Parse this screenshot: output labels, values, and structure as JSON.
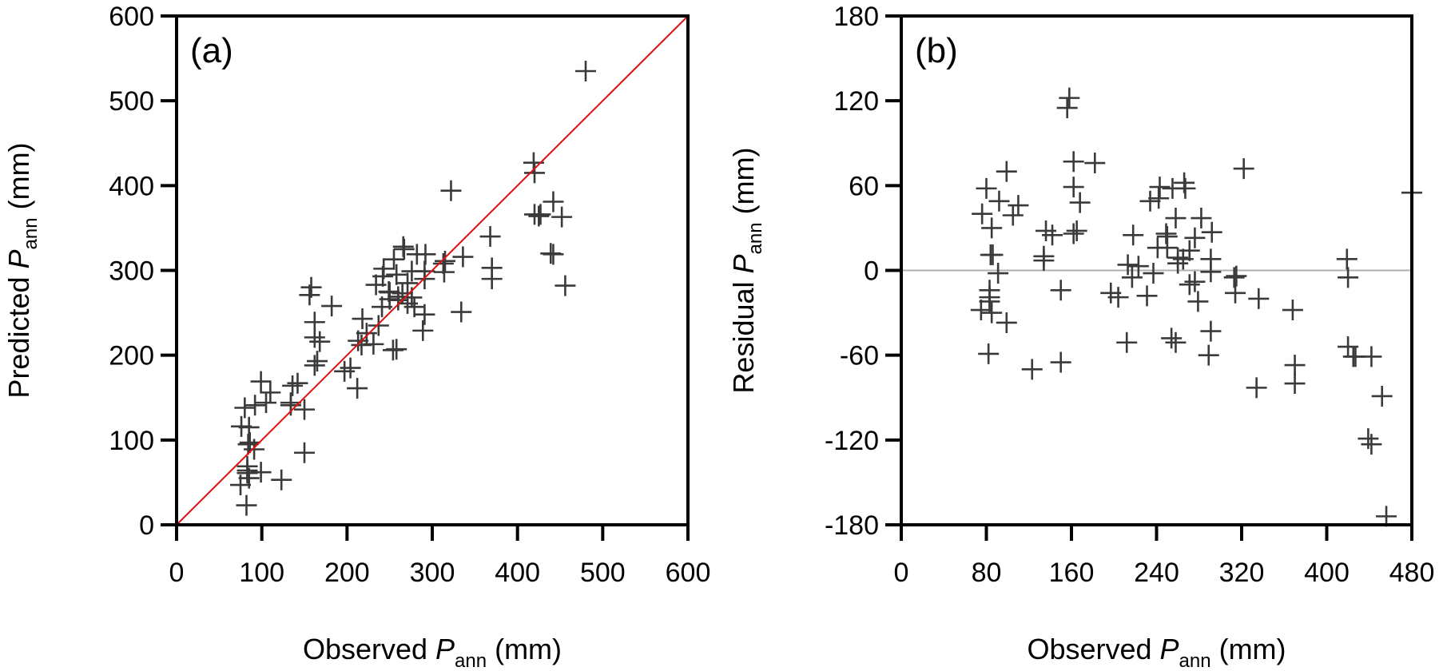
{
  "chart_data": [
    {
      "id": "a",
      "type": "scatter",
      "panel_label": "(a)",
      "title": "",
      "xlabel": {
        "pre": "Observed ",
        "italic": "P",
        "sub": "ann",
        "post": " (mm)"
      },
      "ylabel": {
        "pre": "Predicted ",
        "italic": "P",
        "sub": "ann",
        "post": " (mm)"
      },
      "xlim": [
        0,
        600
      ],
      "ylim": [
        0,
        600
      ],
      "xticks": [
        0,
        100,
        200,
        300,
        400,
        500,
        600
      ],
      "yticks": [
        0,
        100,
        200,
        300,
        400,
        500,
        600
      ],
      "xtick_labels": [
        "0",
        "100",
        "200",
        "300",
        "400",
        "500",
        "600"
      ],
      "ytick_labels": [
        "0",
        "100",
        "200",
        "300",
        "400",
        "500",
        "600"
      ],
      "grid": false,
      "marker": "+",
      "marker_color": "#3a3a3a",
      "reference_line": {
        "type": "1:1",
        "from": [
          0,
          0
        ],
        "to": [
          600,
          600
        ],
        "color": "#e01010"
      },
      "series_source": "points (x = observed, y = observed + residual)"
    },
    {
      "id": "b",
      "type": "scatter",
      "panel_label": "(b)",
      "title": "",
      "xlabel": {
        "pre": "Observed ",
        "italic": "P",
        "sub": "ann",
        "post": " (mm)"
      },
      "ylabel": {
        "pre": "Residual ",
        "italic": "P",
        "sub": "ann",
        "post": " (mm)"
      },
      "xlim": [
        0,
        480
      ],
      "ylim": [
        -180,
        180
      ],
      "xticks": [
        0,
        80,
        160,
        240,
        320,
        400,
        480
      ],
      "yticks": [
        -180,
        -120,
        -60,
        0,
        60,
        120,
        180
      ],
      "xtick_labels": [
        "0",
        "80",
        "160",
        "240",
        "320",
        "400",
        "480"
      ],
      "ytick_labels": [
        "-180",
        "-120",
        "-60",
        "0",
        "60",
        "120",
        "180"
      ],
      "grid": false,
      "marker": "+",
      "marker_color": "#3a3a3a",
      "reference_line": {
        "type": "horizontal",
        "y": 0,
        "color": "#b0b0b0"
      },
      "series_source": "points (x = observed, y = residual)"
    }
  ],
  "points": [
    {
      "obs": 99,
      "res": 70
    },
    {
      "obs": 80,
      "res": 58
    },
    {
      "obs": 92,
      "res": 49
    },
    {
      "obs": 110,
      "res": 46
    },
    {
      "obs": 76,
      "res": 40
    },
    {
      "obs": 105,
      "res": 39
    },
    {
      "obs": 85,
      "res": 30
    },
    {
      "obs": 84,
      "res": 11
    },
    {
      "obs": 86,
      "res": 11
    },
    {
      "obs": 91,
      "res": -2
    },
    {
      "obs": 83,
      "res": -14
    },
    {
      "obs": 83,
      "res": -19
    },
    {
      "obs": 83,
      "res": -22
    },
    {
      "obs": 75,
      "res": -28
    },
    {
      "obs": 85,
      "res": -30
    },
    {
      "obs": 99,
      "res": -37
    },
    {
      "obs": 82,
      "res": -59
    },
    {
      "obs": 123,
      "res": -70
    },
    {
      "obs": 158,
      "res": 122
    },
    {
      "obs": 156,
      "res": 115
    },
    {
      "obs": 162,
      "res": 77
    },
    {
      "obs": 182,
      "res": 76
    },
    {
      "obs": 162,
      "res": 59
    },
    {
      "obs": 168,
      "res": 48
    },
    {
      "obs": 136,
      "res": 28
    },
    {
      "obs": 142,
      "res": 25
    },
    {
      "obs": 162,
      "res": 26
    },
    {
      "obs": 165,
      "res": 28
    },
    {
      "obs": 134,
      "res": 10
    },
    {
      "obs": 134,
      "res": 7
    },
    {
      "obs": 150,
      "res": -14
    },
    {
      "obs": 150,
      "res": -65
    },
    {
      "obs": 218,
      "res": 25
    },
    {
      "obs": 213,
      "res": 4
    },
    {
      "obs": 223,
      "res": 3
    },
    {
      "obs": 217,
      "res": -5
    },
    {
      "obs": 237,
      "res": -2
    },
    {
      "obs": 197,
      "res": -16
    },
    {
      "obs": 204,
      "res": -19
    },
    {
      "obs": 231,
      "res": -18
    },
    {
      "obs": 212,
      "res": -51
    },
    {
      "obs": 243,
      "res": 59
    },
    {
      "obs": 255,
      "res": 58
    },
    {
      "obs": 266,
      "res": 62
    },
    {
      "obs": 267,
      "res": 58
    },
    {
      "obs": 234,
      "res": 49
    },
    {
      "obs": 242,
      "res": 51
    },
    {
      "obs": 258,
      "res": 37
    },
    {
      "obs": 282,
      "res": 37
    },
    {
      "obs": 249,
      "res": 26
    },
    {
      "obs": 250,
      "res": 24
    },
    {
      "obs": 241,
      "res": 16
    },
    {
      "obs": 250,
      "res": 16
    },
    {
      "obs": 292,
      "res": 27
    },
    {
      "obs": 276,
      "res": 23
    },
    {
      "obs": 271,
      "res": 14
    },
    {
      "obs": 260,
      "res": 9
    },
    {
      "obs": 265,
      "res": 8
    },
    {
      "obs": 260,
      "res": 5
    },
    {
      "obs": 291,
      "res": 8
    },
    {
      "obs": 291,
      "res": -1
    },
    {
      "obs": 271,
      "res": -10
    },
    {
      "obs": 276,
      "res": -8
    },
    {
      "obs": 279,
      "res": -22
    },
    {
      "obs": 254,
      "res": -48
    },
    {
      "obs": 258,
      "res": -51
    },
    {
      "obs": 291,
      "res": -43
    },
    {
      "obs": 289,
      "res": -60
    },
    {
      "obs": 322,
      "res": 72
    },
    {
      "obs": 313,
      "res": -5
    },
    {
      "obs": 315,
      "res": -4
    },
    {
      "obs": 314,
      "res": -16
    },
    {
      "obs": 336,
      "res": -20
    },
    {
      "obs": 368,
      "res": -28
    },
    {
      "obs": 370,
      "res": -67
    },
    {
      "obs": 370,
      "res": -80
    },
    {
      "obs": 334,
      "res": -83
    },
    {
      "obs": 419,
      "res": 8
    },
    {
      "obs": 420,
      "res": -5
    },
    {
      "obs": 420,
      "res": -54
    },
    {
      "obs": 425,
      "res": -61
    },
    {
      "obs": 427,
      "res": -61
    },
    {
      "obs": 442,
      "res": -61
    },
    {
      "obs": 452,
      "res": -89
    },
    {
      "obs": 439,
      "res": -119
    },
    {
      "obs": 442,
      "res": -123
    },
    {
      "obs": 456,
      "res": -174
    },
    {
      "obs": 480,
      "res": 55
    }
  ]
}
